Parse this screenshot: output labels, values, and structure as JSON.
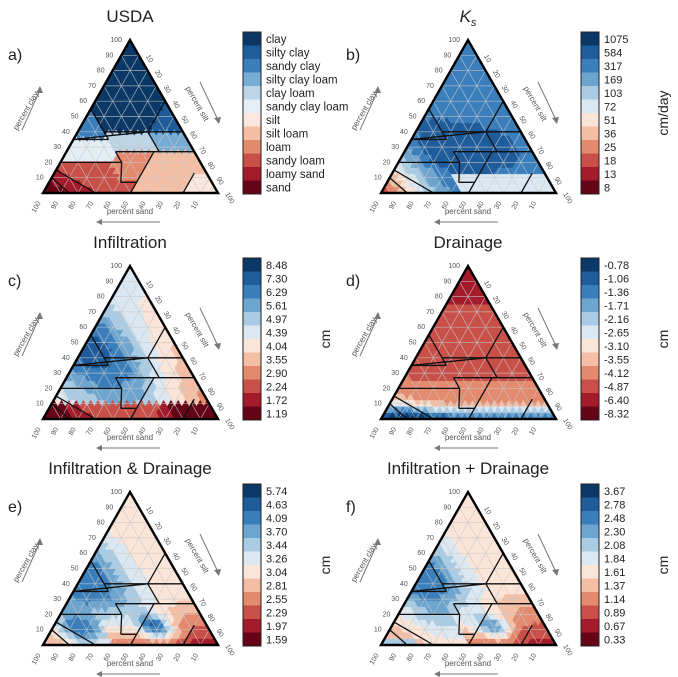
{
  "chart_data": [
    {
      "type": "heatmap",
      "panel_label": "a)",
      "title": "USDA",
      "colorbar_type": "categorical",
      "colorbar_labels": [
        "clay",
        "silty clay",
        "sandy clay",
        "silty clay loam",
        "clay loam",
        "sandy clay loam",
        "silt",
        "silt loam",
        "loam",
        "sandy loam",
        "loamy sand",
        "sand"
      ],
      "colorbar_colors": [
        "#0b3866",
        "#1f5c9c",
        "#3a7fbc",
        "#77acd4",
        "#bcd6e8",
        "#e4eef5",
        "#fbe7dd",
        "#f4bfa5",
        "#e48a6e",
        "#c95048",
        "#a41b2b",
        "#660417"
      ],
      "colorbar_unit": "",
      "axis_labels": {
        "left": "percent clay",
        "right": "percent silt",
        "bottom": "percent sand"
      },
      "tick_labels": {
        "left": [
          "10",
          "20",
          "30",
          "40",
          "50",
          "60",
          "70",
          "80",
          "90",
          "100"
        ],
        "right": [
          "10",
          "20",
          "30",
          "40",
          "50",
          "60",
          "70",
          "80",
          "90",
          "100"
        ],
        "bottom": [
          "100",
          "90",
          "80",
          "70",
          "60",
          "50",
          "40",
          "30",
          "20",
          "10"
        ]
      }
    },
    {
      "type": "heatmap",
      "panel_label": "b)",
      "title": "K_s",
      "colorbar_type": "continuous",
      "colorbar_labels": [
        "1075",
        "584",
        "317",
        "169",
        "103",
        "72",
        "51",
        "36",
        "25",
        "18",
        "13",
        "8"
      ],
      "colorbar_unit": "cm/day",
      "axis_labels": {
        "left": "percent clay",
        "right": "percent silt",
        "bottom": "percent sand"
      }
    },
    {
      "type": "heatmap",
      "panel_label": "c)",
      "title": "Infiltration",
      "colorbar_type": "continuous",
      "colorbar_labels": [
        "8.48",
        "7.30",
        "6.29",
        "5.61",
        "4.97",
        "4.39",
        "4.04",
        "3.55",
        "2.90",
        "2.24",
        "1.72",
        "1.19"
      ],
      "colorbar_unit": "cm",
      "axis_labels": {
        "left": "percent clay",
        "right": "percent silt",
        "bottom": "percent sand"
      }
    },
    {
      "type": "heatmap",
      "panel_label": "d)",
      "title": "Drainage",
      "colorbar_type": "continuous",
      "colorbar_labels": [
        "-0.78",
        "-1.06",
        "-1.36",
        "-1.71",
        "-2.16",
        "-2.65",
        "-3.10",
        "-3.55",
        "-4.12",
        "-4.87",
        "-6.40",
        "-8.32"
      ],
      "colorbar_unit": "cm",
      "axis_labels": {
        "left": "percent clay",
        "right": "percent silt",
        "bottom": "percent sand"
      }
    },
    {
      "type": "heatmap",
      "panel_label": "e)",
      "title": "Infiltration & Drainage",
      "colorbar_type": "continuous",
      "colorbar_labels": [
        "5.74",
        "4.63",
        "4.09",
        "3.70",
        "3.44",
        "3.26",
        "3.04",
        "2.81",
        "2.55",
        "2.29",
        "1.97",
        "1.59"
      ],
      "colorbar_unit": "cm",
      "axis_labels": {
        "left": "percent clay",
        "right": "percent silt",
        "bottom": "percent sand"
      }
    },
    {
      "type": "heatmap",
      "panel_label": "f)",
      "title": "Infiltration + Drainage",
      "colorbar_type": "continuous",
      "colorbar_labels": [
        "3.67",
        "2.78",
        "2.48",
        "2.30",
        "2.08",
        "1.84",
        "1.61",
        "1.37",
        "1.14",
        "0.89",
        "0.67",
        "0.33"
      ],
      "colorbar_unit": "cm",
      "axis_labels": {
        "left": "percent clay",
        "right": "percent silt",
        "bottom": "percent sand"
      }
    }
  ],
  "palette": {
    "continuous": [
      "#0b3866",
      "#1f5c9c",
      "#3a7fbc",
      "#6ea5cf",
      "#a9cbe3",
      "#dbe8f2",
      "#fbe5d8",
      "#f4bfa5",
      "#e48a6e",
      "#c95048",
      "#a41b2b",
      "#660417"
    ],
    "frame": "#000000",
    "grid": "#c8c8c8",
    "axis_text": "#555555"
  }
}
